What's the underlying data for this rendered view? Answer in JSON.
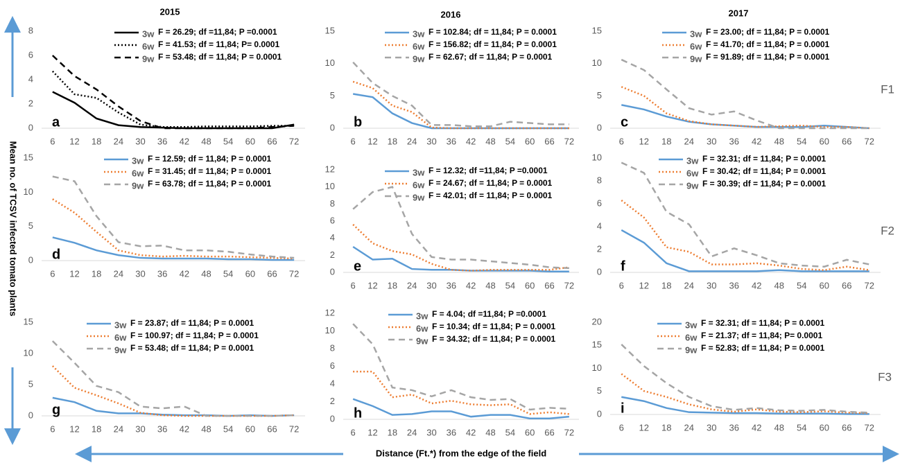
{
  "column_titles": [
    "2015",
    "2016",
    "2017"
  ],
  "row_labels": [
    "F1",
    "F2",
    "F3"
  ],
  "y_axis_label": "Mean no. of TCSV infected tomato plants",
  "x_axis_label": "Distance (Ft.*) from the edge of the field",
  "chart_data": [
    {
      "type": "line",
      "panel": "a",
      "categories": [
        6,
        12,
        18,
        24,
        30,
        36,
        42,
        48,
        54,
        60,
        66,
        72
      ],
      "ylim": [
        0,
        8
      ],
      "yticks": [
        0,
        2,
        4,
        6,
        8
      ],
      "series": [
        {
          "name": "3w",
          "stats": "F = 26.29; df =11,84; P =0.0001",
          "color": "#000000",
          "dash": "solid",
          "values": [
            3,
            2.1,
            0.8,
            0.25,
            0.1,
            0.05,
            0,
            0,
            0,
            0,
            0,
            0.3
          ]
        },
        {
          "name": "6w",
          "stats": "F = 41.53; df = 11,84; P= 0.0001",
          "color": "#000000",
          "dash": "dotted",
          "values": [
            4.7,
            2.8,
            2.5,
            1.3,
            0.3,
            0.1,
            0.1,
            0.15,
            0.15,
            0.15,
            0.2,
            0.2
          ]
        },
        {
          "name": "9w",
          "stats": "F = 53.48; df = 11,84; P = 0.0001",
          "color": "#000000",
          "dash": "dashed",
          "values": [
            6,
            4.3,
            3.2,
            1.8,
            0.6,
            0,
            0,
            0,
            0,
            0,
            0.1,
            0.2
          ]
        }
      ]
    },
    {
      "type": "line",
      "panel": "b",
      "categories": [
        6,
        12,
        18,
        24,
        30,
        36,
        42,
        48,
        54,
        60,
        66,
        72
      ],
      "ylim": [
        0,
        15
      ],
      "yticks": [
        0,
        5,
        10,
        15
      ],
      "series": [
        {
          "name": "3w",
          "stats": "F = 102.84; df = 11,84; P = 0.0001",
          "color": "#5b9bd5",
          "dash": "solid",
          "values": [
            5.3,
            4.8,
            2.3,
            0.8,
            0,
            0,
            0,
            0,
            0,
            0,
            0,
            0
          ]
        },
        {
          "name": "6w",
          "stats": "F = 156.82; df = 11,84; P = 0.0001",
          "color": "#ed7d31",
          "dash": "dotted",
          "values": [
            7.2,
            6.2,
            3.5,
            2.5,
            0.1,
            0,
            0,
            0,
            0,
            0,
            0,
            0
          ]
        },
        {
          "name": "9w",
          "stats": "F = 62.67; df = 11,84; P = 0.0001",
          "color": "#a5a5a5",
          "dash": "dashed",
          "values": [
            10.2,
            7,
            5,
            3.5,
            0.5,
            0.5,
            0.3,
            0.3,
            1,
            0.8,
            0.6,
            0.6
          ]
        }
      ]
    },
    {
      "type": "line",
      "panel": "c",
      "categories": [
        6,
        12,
        18,
        24,
        30,
        36,
        42,
        48,
        54,
        60,
        66,
        72
      ],
      "ylim": [
        0,
        15
      ],
      "yticks": [
        0,
        5,
        10,
        15
      ],
      "series": [
        {
          "name": "3w",
          "stats": "F = 23.00; df = 11,84; P = 0.0001",
          "color": "#5b9bd5",
          "dash": "solid",
          "values": [
            3.6,
            2.9,
            1.8,
            1,
            0.6,
            0.4,
            0.2,
            0.2,
            0.2,
            0.4,
            0.2,
            0
          ]
        },
        {
          "name": "6w",
          "stats": "F = 41.70; df = 11,84; P = 0.0001",
          "color": "#ed7d31",
          "dash": "dotted",
          "values": [
            6.4,
            5,
            2.3,
            1.1,
            0.6,
            0.4,
            0.2,
            0.3,
            0.4,
            0.2,
            0.2,
            0
          ]
        },
        {
          "name": "9w",
          "stats": "F = 91.89; df = 11,84; P = 0.0001",
          "color": "#a5a5a5",
          "dash": "dashed",
          "values": [
            10.6,
            9,
            6,
            3.1,
            2.1,
            2.6,
            1.2,
            0,
            0,
            0,
            0,
            0
          ]
        }
      ]
    },
    {
      "type": "line",
      "panel": "d",
      "categories": [
        6,
        12,
        18,
        24,
        30,
        36,
        42,
        48,
        54,
        60,
        66,
        72
      ],
      "ylim": [
        0,
        15
      ],
      "yticks": [
        0,
        5,
        10,
        15
      ],
      "series": [
        {
          "name": "3w",
          "stats": "F = 12.59; df = 11,84; P = 0.0001",
          "color": "#5b9bd5",
          "dash": "solid",
          "values": [
            3.4,
            2.6,
            1.5,
            0.8,
            0.4,
            0.3,
            0.3,
            0.3,
            0.2,
            0.2,
            0.1,
            0.1
          ]
        },
        {
          "name": "6w",
          "stats": "F = 31.45; df = 11,84; P = 0.0001",
          "color": "#ed7d31",
          "dash": "dotted",
          "values": [
            9,
            7,
            4.2,
            1.5,
            0.8,
            0.6,
            0.7,
            0.6,
            0.6,
            0.5,
            0.4,
            0.3
          ]
        },
        {
          "name": "9w",
          "stats": "F = 63.78; df = 11,84; P = 0.0001",
          "color": "#a5a5a5",
          "dash": "dashed",
          "values": [
            12.3,
            11.6,
            6.5,
            2.7,
            2.1,
            2.2,
            1.5,
            1.5,
            1.3,
            0.9,
            0.6,
            0.4
          ]
        }
      ]
    },
    {
      "type": "line",
      "panel": "e",
      "categories": [
        6,
        12,
        18,
        24,
        30,
        36,
        42,
        48,
        54,
        60,
        66,
        72
      ],
      "ylim": [
        0,
        12
      ],
      "yticks": [
        0,
        2,
        4,
        6,
        8,
        10,
        12
      ],
      "series": [
        {
          "name": "3w",
          "stats": "F = 12.32; df =11,84; P =0.0001",
          "color": "#5b9bd5",
          "dash": "solid",
          "values": [
            3,
            1.5,
            1.6,
            0.4,
            0.3,
            0.3,
            0.2,
            0.2,
            0.2,
            0.2,
            0.1,
            0.1
          ]
        },
        {
          "name": "6w",
          "stats": "F = 24.67; df = 11,84; P = 0.0001",
          "color": "#ed7d31",
          "dash": "dotted",
          "values": [
            5.6,
            3.4,
            2.5,
            2.1,
            1,
            0.3,
            0.2,
            0.3,
            0.3,
            0.3,
            0.3,
            0.6
          ]
        },
        {
          "name": "9w",
          "stats": "F = 42.01; df = 11,84; P = 0.0001",
          "color": "#a5a5a5",
          "dash": "dashed",
          "values": [
            7.4,
            9.4,
            10,
            4.5,
            1.8,
            1.5,
            1.5,
            1.3,
            1.1,
            0.9,
            0.6,
            0.5
          ]
        }
      ]
    },
    {
      "type": "line",
      "panel": "f",
      "categories": [
        6,
        12,
        18,
        24,
        30,
        36,
        42,
        48,
        54,
        60,
        66,
        72
      ],
      "ylim": [
        0,
        10
      ],
      "yticks": [
        0,
        2,
        4,
        6,
        8,
        10
      ],
      "series": [
        {
          "name": "3w",
          "stats": "F = 32.31; df = 11,84; P = 0.0001",
          "color": "#5b9bd5",
          "dash": "solid",
          "values": [
            3.7,
            2.6,
            0.8,
            0.1,
            0.1,
            0.1,
            0.1,
            0.2,
            0.1,
            0.1,
            0.1,
            0.1
          ]
        },
        {
          "name": "6w",
          "stats": "F = 30.42; df = 11,84; P = 0.0001",
          "color": "#ed7d31",
          "dash": "dotted",
          "values": [
            6.3,
            4.8,
            2.2,
            1.8,
            0.7,
            0.7,
            0.8,
            0.6,
            0.3,
            0.2,
            0.5,
            0.2
          ]
        },
        {
          "name": "9w",
          "stats": "F = 30.39; df = 11,84; P = 0.0001",
          "color": "#a5a5a5",
          "dash": "dashed",
          "values": [
            9.6,
            8.7,
            5.3,
            4.2,
            1.4,
            2.1,
            1.5,
            0.8,
            0.6,
            0.5,
            1.1,
            0.7
          ]
        }
      ]
    },
    {
      "type": "line",
      "panel": "g",
      "categories": [
        6,
        12,
        18,
        24,
        30,
        36,
        42,
        48,
        54,
        60,
        66,
        72
      ],
      "ylim": [
        0,
        15
      ],
      "yticks": [
        0,
        5,
        10,
        15
      ],
      "series": [
        {
          "name": "3w",
          "stats": "F = 23.87; df = 11,84; P = 0.0001",
          "color": "#5b9bd5",
          "dash": "solid",
          "values": [
            2.9,
            2.2,
            0.8,
            0.4,
            0.4,
            0.2,
            0.1,
            0.1,
            0,
            0.1,
            0,
            0.1
          ]
        },
        {
          "name": "6w",
          "stats": "F = 100.97; df = 11,84; P = 0.0001",
          "color": "#ed7d31",
          "dash": "dotted",
          "values": [
            8,
            4.5,
            3.3,
            2,
            0.5,
            0.1,
            0,
            0,
            0,
            0,
            0,
            0.1
          ]
        },
        {
          "name": "9w",
          "stats": "F = 53.48; df = 11,84; P = 0.0001",
          "color": "#a5a5a5",
          "dash": "dashed",
          "values": [
            12,
            8.5,
            4.8,
            3.8,
            1.5,
            1.2,
            1.5,
            0,
            0,
            0,
            0,
            0.1
          ]
        }
      ]
    },
    {
      "type": "line",
      "panel": "h",
      "categories": [
        6,
        12,
        18,
        24,
        30,
        36,
        42,
        48,
        54,
        60,
        66,
        72
      ],
      "ylim": [
        0,
        12
      ],
      "yticks": [
        0,
        2,
        4,
        6,
        8,
        10,
        12
      ],
      "series": [
        {
          "name": "3w",
          "stats": "F = 4.04; df =11,84; P =0.0001",
          "color": "#5b9bd5",
          "dash": "solid",
          "values": [
            2.3,
            1.5,
            0.5,
            0.6,
            0.9,
            0.9,
            0.3,
            0.5,
            0.5,
            0.1,
            0.1,
            0.3
          ]
        },
        {
          "name": "6w",
          "stats": "F = 10.34; df = 11,84; P = 0.0001",
          "color": "#ed7d31",
          "dash": "dotted",
          "values": [
            5.4,
            5.4,
            2.5,
            2.8,
            1.8,
            2.1,
            1.7,
            1.6,
            1.7,
            0.6,
            0.8,
            0.6
          ]
        },
        {
          "name": "9w",
          "stats": "F = 34.32; df = 11,84; P = 0.0001",
          "color": "#a5a5a5",
          "dash": "dashed",
          "values": [
            10.8,
            8.5,
            3.6,
            3.3,
            2.6,
            3.3,
            2.5,
            2.2,
            2.3,
            1.1,
            1.3,
            1.2
          ]
        }
      ]
    },
    {
      "type": "line",
      "panel": "i",
      "categories": [
        6,
        12,
        18,
        24,
        30,
        36,
        42,
        48,
        54,
        60,
        66,
        72
      ],
      "ylim": [
        0,
        20
      ],
      "yticks": [
        0,
        5,
        10,
        15,
        20
      ],
      "series": [
        {
          "name": "3w",
          "stats": "F = 32.31; df = 11,84; P = 0.0001",
          "color": "#5b9bd5",
          "dash": "solid",
          "values": [
            3.8,
            2.9,
            1.4,
            0.5,
            0.4,
            0.3,
            0.3,
            0.2,
            0.2,
            0.2,
            0.1,
            0.1
          ]
        },
        {
          "name": "6w",
          "stats": "F = 21.37; df = 11,84; P= 0.0001",
          "color": "#ed7d31",
          "dash": "dotted",
          "values": [
            8.8,
            5.1,
            3.8,
            2.2,
            1.1,
            0.6,
            1.1,
            0.6,
            0.5,
            0.7,
            0.4,
            0.3
          ]
        },
        {
          "name": "9w",
          "stats": "F = 52.83; df = 11,84; P = 0.0001",
          "color": "#a5a5a5",
          "dash": "dashed",
          "values": [
            15.2,
            10.5,
            6.8,
            3.8,
            1.8,
            1,
            1.4,
            0.9,
            0.8,
            1,
            0.6,
            0.4
          ]
        }
      ]
    }
  ]
}
